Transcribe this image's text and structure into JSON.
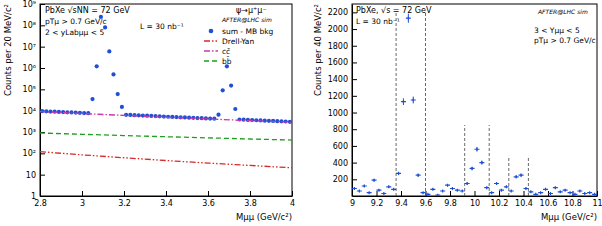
{
  "chart_data": [
    {
      "type": "scatter",
      "x_label": "Mμμ (GeV/c²)",
      "y_label": "Counts per 20 MeV/c²",
      "log": "y",
      "legend": "top-right",
      "annotations": [
        "PbXe √sNN = 72 GeV",
        "pTμ > 0.7 GeV/c",
        "2 < yLabμμ < 5",
        "L = 30 nb⁻¹",
        "AFTER@LHC sim",
        "ψ→μ⁺μ⁻"
      ],
      "xlim": [
        2.8,
        4
      ],
      "xticks": [
        2.8,
        3,
        3.2,
        3.4,
        3.6,
        3.8,
        4
      ],
      "ylim": [
        1,
        1000000000
      ],
      "yticks": [
        1,
        10,
        {
          "value": 100,
          "label": "10²"
        },
        {
          "value": 1000,
          "label": "10³"
        },
        {
          "value": 10000,
          "label": "10⁴"
        },
        {
          "value": 100000,
          "label": "10⁵"
        },
        {
          "value": 1000000,
          "label": "10⁶"
        },
        {
          "value": 10000000,
          "label": "10⁷"
        },
        {
          "value": 100000000,
          "label": "10⁸"
        },
        {
          "value": 1000000000,
          "label": "10⁹"
        }
      ],
      "series": [
        {
          "name": "sum - MB bkg",
          "type": "scatter",
          "marker": "circle",
          "color": "#1f4fd6",
          "x": [
            2.81,
            2.83,
            2.85,
            2.87,
            2.89,
            2.91,
            2.93,
            2.95,
            2.97,
            2.99,
            3.01,
            3.03,
            3.05,
            3.07,
            3.09,
            3.11,
            3.13,
            3.15,
            3.17,
            3.19,
            3.21,
            3.23,
            3.25,
            3.27,
            3.29,
            3.31,
            3.33,
            3.35,
            3.37,
            3.39,
            3.41,
            3.43,
            3.45,
            3.47,
            3.49,
            3.51,
            3.53,
            3.55,
            3.57,
            3.59,
            3.61,
            3.63,
            3.65,
            3.67,
            3.69,
            3.71,
            3.73,
            3.75,
            3.77,
            3.79,
            3.81,
            3.83,
            3.85,
            3.87,
            3.89,
            3.91,
            3.93,
            3.95,
            3.97,
            3.99
          ],
          "values": [
            9500,
            9300,
            9100,
            8950,
            8750,
            8600,
            8400,
            8250,
            8100,
            7900,
            7750,
            7600,
            35000,
            1200000,
            250000000,
            80000000,
            6000000,
            500000,
            60000,
            15000,
            6400,
            6300,
            6150,
            6050,
            5900,
            5800,
            5650,
            5550,
            5450,
            5300,
            5200,
            5100,
            5000,
            4900,
            4800,
            4700,
            4600,
            4500,
            4450,
            4350,
            4250,
            4200,
            6500,
            90000,
            1200000,
            150000,
            12000,
            3850,
            3800,
            3700,
            3650,
            3550,
            3500,
            3400,
            3350,
            3300,
            3200,
            3150,
            3100,
            3000
          ]
        },
        {
          "name": "Drell-Yan",
          "type": "line",
          "line_style": "dashdotdot",
          "color": "#d42a2a",
          "x": [
            2.8,
            3,
            3.2,
            3.4,
            3.6,
            3.8,
            4
          ],
          "values": [
            120,
            85,
            62,
            46,
            35,
            27,
            21
          ]
        },
        {
          "name": "cc̄",
          "type": "line",
          "line_style": "dashdot",
          "color": "#c838a8",
          "x": [
            2.8,
            3,
            3.2,
            3.4,
            3.6,
            3.8,
            4
          ],
          "values": [
            9000,
            7300,
            6000,
            4900,
            4100,
            3400,
            2850
          ]
        },
        {
          "name": "bb̄",
          "type": "line",
          "line_style": "dashed",
          "color": "#1e9e1e",
          "x": [
            2.8,
            3,
            3.2,
            3.4,
            3.6,
            3.8,
            4
          ],
          "values": [
            900,
            780,
            680,
            600,
            530,
            470,
            420
          ]
        }
      ]
    },
    {
      "type": "scatter",
      "x_label": "Mμμ (GeV/c²)",
      "y_label": "Counts per 40 MeV/c²",
      "annotations": [
        "PbXe, √s = 72 GeV",
        "L = 30 nb⁻¹",
        "AFTER@LHC sim",
        "3 < Yμμ < 5",
        "pTμ > 0.7 GeV/c"
      ],
      "xlim": [
        9,
        11
      ],
      "xticks": [
        9,
        9.2,
        9.4,
        9.6,
        9.8,
        10,
        10.2,
        10.4,
        10.6,
        10.8,
        11
      ],
      "ylim": [
        0,
        2300
      ],
      "yticks": [
        200,
        400,
        600,
        800,
        1000,
        1200,
        1400,
        1600,
        1800,
        2000,
        2200
      ],
      "mass_windows": [
        {
          "x": [
            9.36,
            9.6
          ],
          "height": 2200
        },
        {
          "x": [
            9.92,
            10.12
          ],
          "height": 850
        },
        {
          "x": [
            10.28,
            10.44
          ],
          "height": 480
        }
      ],
      "series": [
        {
          "type": "scatter",
          "marker": "cross",
          "color": "#1f4fd6",
          "x": [
            9.02,
            9.06,
            9.1,
            9.14,
            9.18,
            9.22,
            9.26,
            9.3,
            9.34,
            9.38,
            9.42,
            9.46,
            9.5,
            9.54,
            9.58,
            9.62,
            9.66,
            9.7,
            9.74,
            9.78,
            9.82,
            9.86,
            9.9,
            9.94,
            9.98,
            10.02,
            10.06,
            10.1,
            10.14,
            10.18,
            10.22,
            10.26,
            10.3,
            10.34,
            10.38,
            10.42,
            10.46,
            10.5,
            10.54,
            10.58,
            10.62,
            10.66,
            10.7,
            10.74,
            10.78,
            10.82,
            10.86,
            10.9,
            10.94,
            10.98
          ],
          "values": [
            90,
            60,
            120,
            40,
            190,
            70,
            30,
            110,
            80,
            270,
            1130,
            2130,
            1150,
            250,
            40,
            20,
            80,
            10,
            60,
            130,
            90,
            70,
            60,
            150,
            330,
            560,
            400,
            100,
            40,
            150,
            70,
            110,
            60,
            230,
            250,
            90,
            50,
            20,
            40,
            80,
            30,
            100,
            50,
            70,
            40,
            20,
            60,
            30,
            40,
            20
          ],
          "errors": [
            11,
            9,
            13,
            8,
            16,
            10,
            7,
            13,
            11,
            20,
            40,
            55,
            41,
            19,
            8,
            5,
            11,
            4,
            9,
            14,
            11,
            10,
            9,
            15,
            22,
            28,
            24,
            12,
            8,
            15,
            10,
            13,
            9,
            18,
            19,
            11,
            8,
            5,
            8,
            11,
            7,
            12,
            8,
            10,
            8,
            5,
            9,
            7,
            8,
            5
          ]
        }
      ]
    }
  ]
}
